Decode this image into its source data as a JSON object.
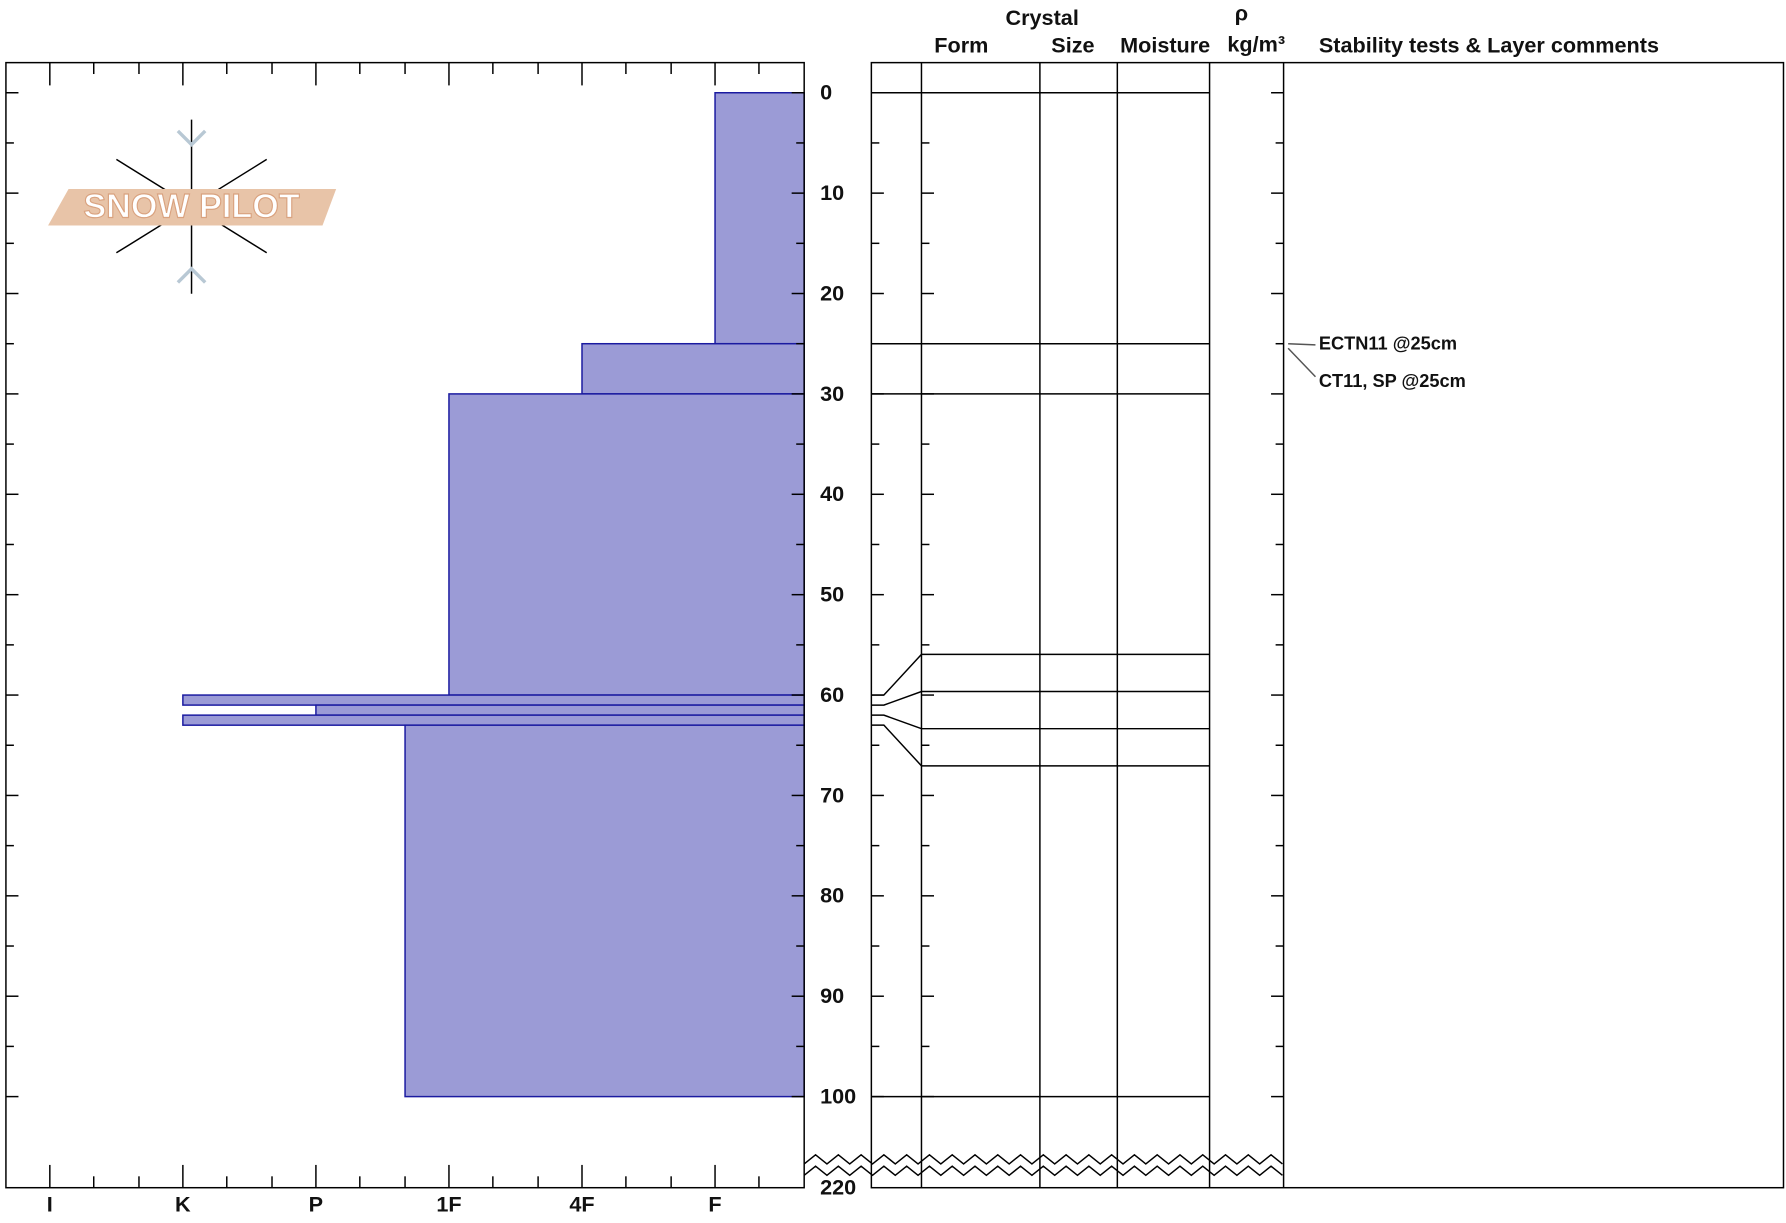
{
  "chart_data": {
    "type": "snowprofile",
    "xlim": [
      6.33,
      0.33
    ],
    "xticks": [
      {
        "value": 6,
        "label": "I"
      },
      {
        "value": 5,
        "label": "K"
      },
      {
        "value": 4,
        "label": "P"
      },
      {
        "value": 3,
        "label": "1F"
      },
      {
        "value": 2,
        "label": "4F"
      },
      {
        "value": 1,
        "label": "F"
      }
    ],
    "xminorticks": [
      5.67,
      5.33,
      4.67,
      4.33,
      3.67,
      3.33,
      2.67,
      2.33,
      1.67,
      1.33,
      0.67
    ],
    "ylim": [
      -3,
      100
    ],
    "yticks": [
      0,
      10,
      20,
      30,
      40,
      50,
      60,
      70,
      80,
      90,
      100
    ],
    "yminorticks": [
      5,
      15,
      25,
      35,
      45,
      55,
      65,
      75,
      85,
      95
    ],
    "y_break_label": 220,
    "layers": {
      "top": [
        0,
        25,
        30,
        60,
        61,
        62,
        63
      ],
      "bottom": [
        25,
        30,
        60,
        61,
        62,
        63,
        100
      ],
      "hardness": [
        1,
        2,
        3,
        5,
        4,
        5,
        3.33
      ]
    },
    "color": "#9b9bd6",
    "edge_color": "#1a1aa0",
    "columns": {
      "crystal": "Crystal",
      "form": "Form",
      "size": "Size",
      "moisture": "Moisture",
      "density_symbol": "ρ",
      "density_unit": "kg/m³",
      "comments": "Stability tests & Layer comments"
    },
    "annotations": [
      {
        "text": "ECTN11 @25cm",
        "depth": 25
      },
      {
        "text": "CT11, SP @25cm",
        "depth": 25
      }
    ],
    "watermark": "SNOW PILOT"
  }
}
